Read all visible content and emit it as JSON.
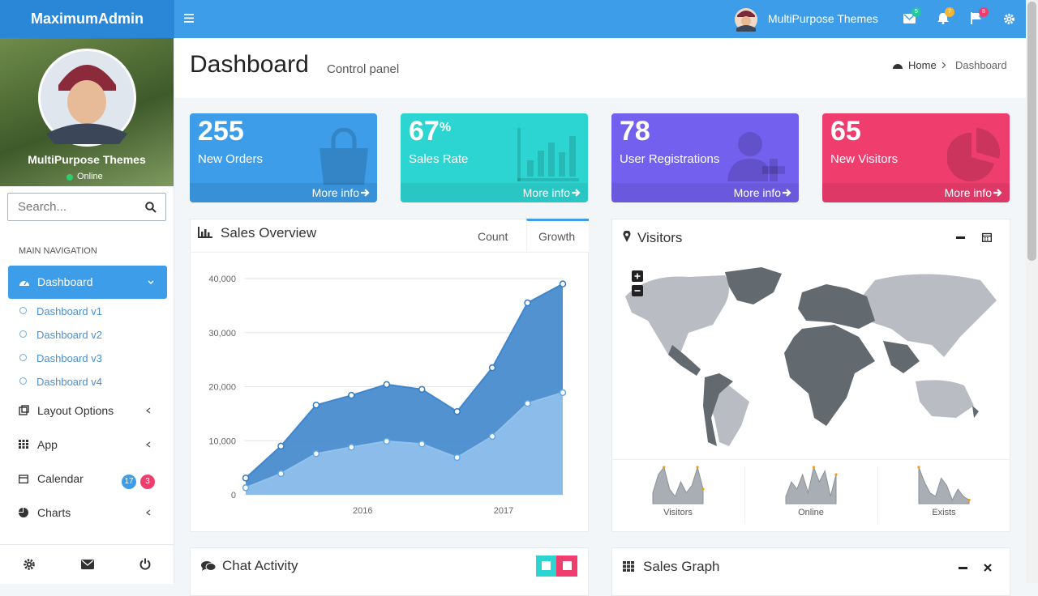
{
  "header": {
    "brand": "MaximumAdmin",
    "user": "MultiPurpose Themes",
    "badges": [
      5,
      7,
      8
    ]
  },
  "sidebar": {
    "user": "MultiPurpose Themes",
    "status": "Online",
    "search": "Search...",
    "nav_header": "MAIN NAVIGATION",
    "active": "Dashboard",
    "subitems": [
      "Dashboard v1",
      "Dashboard v2",
      "Dashboard v3",
      "Dashboard v4"
    ],
    "items": [
      "Layout Options",
      "App",
      "Calendar",
      "Charts"
    ],
    "calendar_badges": [
      17,
      3
    ]
  },
  "page": {
    "title": "Dashboard",
    "subtitle": "Control panel",
    "breadcrumb": [
      "Home",
      "Dashboard"
    ]
  },
  "stats": [
    {
      "value": 255,
      "label": "New Orders",
      "link": "More info"
    },
    {
      "value": 67,
      "unit": "%",
      "label": "Sales Rate",
      "link": "More info"
    },
    {
      "value": 78,
      "label": "User Registrations",
      "link": "More info"
    },
    {
      "value": 65,
      "label": "New Visitors",
      "link": "More info"
    }
  ],
  "panels": {
    "sales_overview": "Sales Overview",
    "tabs": [
      "Count",
      "Growth"
    ],
    "visitors": "Visitors",
    "chat": "Chat Activity",
    "sales_graph": "Sales Graph"
  },
  "chart_data": [
    {
      "type": "area",
      "x": [
        2015.17,
        2015.42,
        2015.67,
        2015.92,
        2016.17,
        2016.42,
        2016.67,
        2016.92,
        2017.17,
        2017.42
      ],
      "series": [
        {
          "color": "#3f86cc",
          "values": [
            3100,
            9000,
            16600,
            18400,
            20400,
            19500,
            15400,
            23500,
            35500,
            39000
          ]
        },
        {
          "color": "#92c2ec",
          "values": [
            1300,
            3900,
            7600,
            8800,
            9900,
            9400,
            6900,
            10800,
            16900,
            18900
          ]
        }
      ],
      "xlim": [
        2015.17,
        2017.42
      ],
      "xticks": [
        2016,
        2017
      ],
      "ylim": [
        0,
        40000
      ],
      "yticks": [
        0,
        {
          "value": 10000,
          "label": "10,000"
        },
        {
          "value": 20000,
          "label": "20,000"
        },
        {
          "value": 30000,
          "label": "30,000"
        },
        {
          "value": 40000,
          "label": "40,000"
        }
      ],
      "grid": true
    },
    {
      "type": "sparkline",
      "title": "Visitors",
      "color": "#a9aeb4",
      "values": [
        3,
        8,
        10,
        4,
        2,
        6,
        3,
        5,
        10,
        4
      ]
    },
    {
      "type": "sparkline",
      "title": "Online",
      "color": "#a9aeb4",
      "values": [
        2,
        6,
        4,
        8,
        3,
        10,
        6,
        9,
        2,
        8
      ]
    },
    {
      "type": "sparkline",
      "title": "Exists",
      "color": "#a9aeb4",
      "values": [
        10,
        6,
        3,
        2,
        7,
        5,
        1,
        4,
        2,
        1
      ]
    }
  ]
}
